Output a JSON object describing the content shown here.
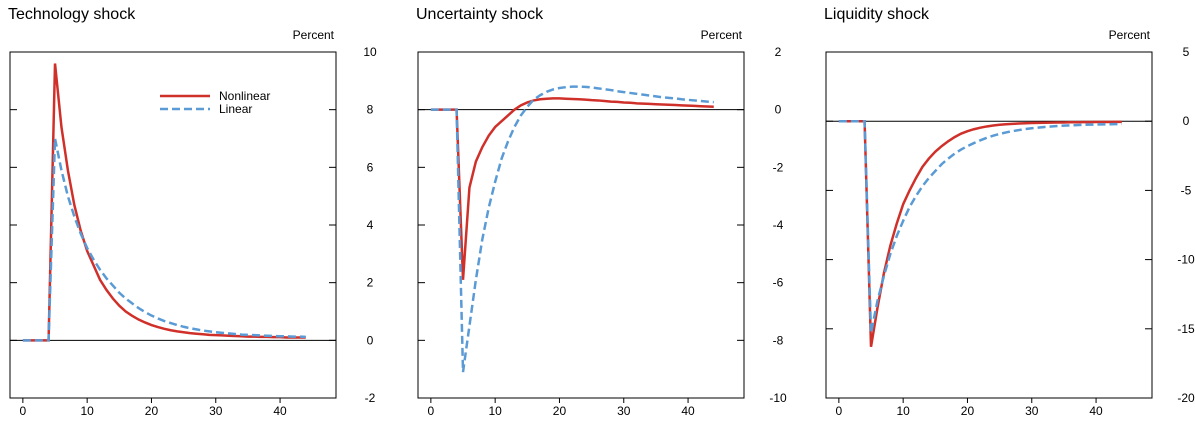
{
  "chart_data": [
    {
      "type": "line",
      "title": "Technology shock",
      "ylabel": "Percent",
      "x": [
        0,
        1,
        2,
        3,
        4,
        5,
        6,
        7,
        8,
        9,
        10,
        11,
        12,
        13,
        14,
        15,
        16,
        17,
        18,
        19,
        20,
        21,
        22,
        23,
        24,
        25,
        26,
        27,
        28,
        29,
        30,
        31,
        32,
        33,
        34,
        35,
        36,
        37,
        38,
        39,
        40,
        41,
        42,
        43,
        44
      ],
      "series": [
        {
          "name": "Nonlinear",
          "color": "#d0302a",
          "style": "solid",
          "values": [
            0,
            0,
            0,
            0,
            0,
            9.6,
            7.4,
            5.9,
            4.7,
            3.8,
            3.1,
            2.6,
            2.1,
            1.75,
            1.45,
            1.2,
            1.0,
            0.85,
            0.72,
            0.62,
            0.53,
            0.46,
            0.4,
            0.35,
            0.31,
            0.28,
            0.25,
            0.23,
            0.21,
            0.19,
            0.18,
            0.17,
            0.16,
            0.15,
            0.14,
            0.13,
            0.13,
            0.12,
            0.12,
            0.11,
            0.11,
            0.1,
            0.1,
            0.1,
            0.1
          ]
        },
        {
          "name": "Linear",
          "color": "#5b9bd5",
          "style": "dashed",
          "values": [
            0,
            0,
            0,
            0,
            0,
            7.0,
            5.9,
            5.0,
            4.3,
            3.7,
            3.2,
            2.8,
            2.45,
            2.15,
            1.9,
            1.65,
            1.45,
            1.28,
            1.12,
            0.98,
            0.86,
            0.76,
            0.67,
            0.6,
            0.53,
            0.47,
            0.42,
            0.38,
            0.34,
            0.31,
            0.28,
            0.26,
            0.24,
            0.22,
            0.2,
            0.19,
            0.18,
            0.17,
            0.16,
            0.15,
            0.14,
            0.14,
            0.13,
            0.13,
            0.12
          ]
        }
      ],
      "legend": "upper right",
      "xlim": [
        -2,
        48.7
      ],
      "xticks": [
        0,
        10,
        20,
        30,
        40
      ],
      "ylim": [
        -2,
        10
      ],
      "yticks": [
        -2,
        0,
        2,
        4,
        6,
        8,
        10
      ]
    },
    {
      "type": "line",
      "title": "Uncertainty shock",
      "ylabel": "Percent",
      "x": [
        0,
        1,
        2,
        3,
        4,
        5,
        6,
        7,
        8,
        9,
        10,
        11,
        12,
        13,
        14,
        15,
        16,
        17,
        18,
        19,
        20,
        21,
        22,
        23,
        24,
        25,
        26,
        27,
        28,
        29,
        30,
        31,
        32,
        33,
        34,
        35,
        36,
        37,
        38,
        39,
        40,
        41,
        42,
        43,
        44
      ],
      "series": [
        {
          "color": "#d0302a",
          "style": "solid",
          "values": [
            0,
            0,
            0,
            0,
            0,
            -5.9,
            -2.7,
            -1.8,
            -1.3,
            -0.9,
            -0.6,
            -0.4,
            -0.2,
            0,
            0.15,
            0.25,
            0.32,
            0.36,
            0.38,
            0.39,
            0.39,
            0.38,
            0.37,
            0.36,
            0.35,
            0.33,
            0.32,
            0.3,
            0.28,
            0.27,
            0.25,
            0.24,
            0.22,
            0.21,
            0.2,
            0.19,
            0.18,
            0.17,
            0.16,
            0.15,
            0.14,
            0.13,
            0.12,
            0.11,
            0.1
          ]
        },
        {
          "color": "#5b9bd5",
          "style": "dashed",
          "values": [
            0,
            0,
            0,
            0,
            0,
            -9.1,
            -7.5,
            -5.9,
            -4.5,
            -3.4,
            -2.5,
            -1.7,
            -1.1,
            -0.6,
            -0.2,
            0.1,
            0.35,
            0.5,
            0.62,
            0.7,
            0.75,
            0.78,
            0.8,
            0.8,
            0.79,
            0.77,
            0.74,
            0.71,
            0.68,
            0.64,
            0.61,
            0.58,
            0.55,
            0.52,
            0.49,
            0.46,
            0.43,
            0.41,
            0.39,
            0.36,
            0.34,
            0.32,
            0.3,
            0.28,
            0.26
          ]
        }
      ],
      "xlim": [
        -2,
        48.7
      ],
      "xticks": [
        0,
        10,
        20,
        30,
        40
      ],
      "ylim": [
        -10,
        2
      ],
      "yticks": [
        -10,
        -8,
        -6,
        -4,
        -2,
        0,
        2
      ]
    },
    {
      "type": "line",
      "title": "Liquidity shock",
      "ylabel": "Percent",
      "x": [
        0,
        1,
        2,
        3,
        4,
        5,
        6,
        7,
        8,
        9,
        10,
        11,
        12,
        13,
        14,
        15,
        16,
        17,
        18,
        19,
        20,
        21,
        22,
        23,
        24,
        25,
        26,
        27,
        28,
        29,
        30,
        31,
        32,
        33,
        34,
        35,
        36,
        37,
        38,
        39,
        40,
        41,
        42,
        43,
        44
      ],
      "series": [
        {
          "color": "#d0302a",
          "style": "solid",
          "values": [
            0,
            0,
            0,
            0,
            0,
            -16.3,
            -13.5,
            -11.0,
            -9.0,
            -7.4,
            -6.0,
            -5.0,
            -4.1,
            -3.3,
            -2.7,
            -2.2,
            -1.8,
            -1.45,
            -1.15,
            -0.9,
            -0.72,
            -0.58,
            -0.47,
            -0.38,
            -0.31,
            -0.26,
            -0.22,
            -0.19,
            -0.17,
            -0.15,
            -0.13,
            -0.12,
            -0.11,
            -0.1,
            -0.09,
            -0.09,
            -0.08,
            -0.08,
            -0.07,
            -0.07,
            -0.06,
            -0.06,
            -0.06,
            -0.05,
            -0.05
          ]
        },
        {
          "color": "#5b9bd5",
          "style": "dashed",
          "values": [
            0,
            0,
            0,
            0,
            0,
            -15.3,
            -13.0,
            -11.2,
            -9.6,
            -8.3,
            -7.2,
            -6.2,
            -5.4,
            -4.7,
            -4.1,
            -3.6,
            -3.1,
            -2.7,
            -2.35,
            -2.05,
            -1.8,
            -1.58,
            -1.38,
            -1.2,
            -1.05,
            -0.92,
            -0.81,
            -0.72,
            -0.64,
            -0.57,
            -0.51,
            -0.46,
            -0.42,
            -0.38,
            -0.35,
            -0.32,
            -0.3,
            -0.28,
            -0.26,
            -0.25,
            -0.24,
            -0.23,
            -0.22,
            -0.21,
            -0.2
          ]
        }
      ],
      "xlim": [
        -2,
        48.7
      ],
      "xticks": [
        0,
        10,
        20,
        30,
        40
      ],
      "ylim": [
        -20,
        5
      ],
      "yticks": [
        -20,
        -15,
        -10,
        -5,
        0,
        5
      ]
    }
  ]
}
